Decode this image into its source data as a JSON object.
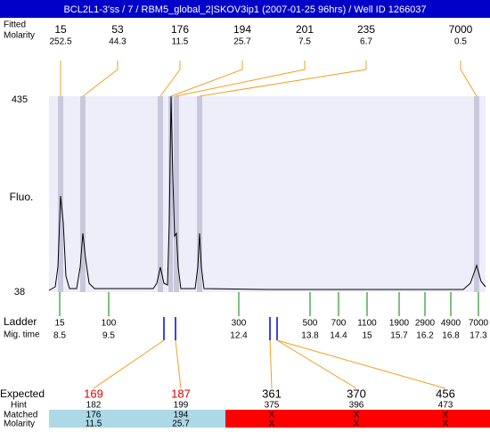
{
  "header": {
    "title": "BCL2L1-3'ss / 7 / RBM5_global_2|SKOV3ip1 (2007-01-25 96hrs) / Well ID 1266037"
  },
  "top_rows": {
    "labels": [
      "Fitted",
      "Molarity"
    ]
  },
  "peaks": [
    {
      "size": 15,
      "molarity": 252.5
    },
    {
      "size": 53,
      "molarity": 44.3
    },
    {
      "size": 176,
      "molarity": 11.5
    },
    {
      "size": 194,
      "molarity": 25.7
    },
    {
      "size": 201,
      "molarity": 7.5
    },
    {
      "size": 235,
      "molarity": 6.7
    },
    {
      "size": 7000,
      "molarity": 0.5
    }
  ],
  "axis": {
    "label": "Fluo.",
    "max": 435,
    "min": 38
  },
  "ladder": {
    "labels": [
      "Ladder",
      "Mig. time"
    ],
    "items": [
      {
        "size": 15,
        "time": 8.5
      },
      {
        "size": 100,
        "time": 9.5
      },
      {
        "size": 300,
        "time": 12.4
      },
      {
        "size": 500,
        "time": 13.8
      },
      {
        "size": 700,
        "time": 14.4
      },
      {
        "size": 1100,
        "time": 15
      },
      {
        "size": 1900,
        "time": 15.7
      },
      {
        "size": 2900,
        "time": 16.2
      },
      {
        "size": 4900,
        "time": 16.8
      },
      {
        "size": 7000,
        "time": 17.3
      }
    ]
  },
  "expected": {
    "labels": [
      "Expected",
      "Hint",
      "Matched",
      "Molarity"
    ],
    "items": [
      {
        "expected": 169,
        "hint": 182,
        "matched": 176,
        "molarity": 11.5
      },
      {
        "expected": 187,
        "hint": 199,
        "matched": 194,
        "molarity": 25.7
      },
      {
        "expected": 361,
        "hint": 375,
        "matched": "X",
        "molarity": "X"
      },
      {
        "expected": 370,
        "hint": 396,
        "matched": "X",
        "molarity": "X"
      },
      {
        "expected": 456,
        "hint": 473,
        "matched": "X",
        "molarity": "X"
      }
    ]
  }
}
